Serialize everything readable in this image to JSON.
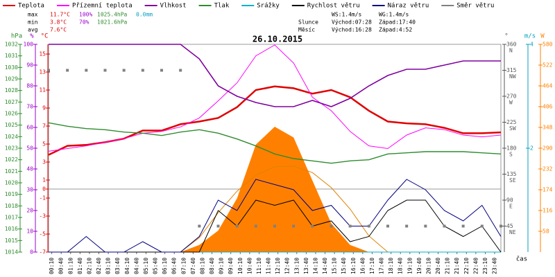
{
  "chart_data": {
    "type": "line",
    "title": "26.10.2015",
    "stats": {
      "max": [
        "max",
        "11.7°C",
        "100%",
        "1025.4hPa",
        "0.0mm"
      ],
      "min": [
        "min",
        "3.8°C",
        "70%",
        "1021.6hPa"
      ],
      "avg": [
        "avg",
        "7.6°C"
      ]
    },
    "info": {
      "wind": [
        "WS:1.4m/s",
        "WG:1.4m/s"
      ],
      "sun": [
        "Slunce",
        "Východ:07:28",
        "Západ:17:40"
      ],
      "moon": [
        "Měsíc",
        "Východ:16:28",
        "Západ:4:52"
      ]
    },
    "x_label": "čas",
    "xlim": [
      0,
      24
    ],
    "x": [
      0,
      1,
      2,
      3,
      4,
      5,
      6,
      7,
      8,
      9,
      10,
      11,
      12,
      13,
      14,
      15,
      16,
      17,
      18,
      19,
      20,
      21,
      22,
      23,
      24
    ],
    "xticks": [
      {
        "value": 0.17,
        "label": "00:10"
      },
      {
        "value": 0.67,
        "label": "00:40"
      },
      {
        "value": 1.17,
        "label": "01:10"
      },
      {
        "value": 1.67,
        "label": "01:40"
      },
      {
        "value": 2.17,
        "label": "02:10"
      },
      {
        "value": 2.67,
        "label": "02:40"
      },
      {
        "value": 3.17,
        "label": "03:10"
      },
      {
        "value": 3.67,
        "label": "03:40"
      },
      {
        "value": 4.17,
        "label": "04:10"
      },
      {
        "value": 4.67,
        "label": "04:40"
      },
      {
        "value": 5.17,
        "label": "05:10"
      },
      {
        "value": 5.67,
        "label": "05:40"
      },
      {
        "value": 6.17,
        "label": "06:10"
      },
      {
        "value": 6.67,
        "label": "06:40"
      },
      {
        "value": 7.17,
        "label": "07:10"
      },
      {
        "value": 7.67,
        "label": "07:40"
      },
      {
        "value": 8.17,
        "label": "08:10"
      },
      {
        "value": 8.67,
        "label": "08:40"
      },
      {
        "value": 9.17,
        "label": "09:10"
      },
      {
        "value": 9.67,
        "label": "09:40"
      },
      {
        "value": 10.17,
        "label": "10:10"
      },
      {
        "value": 10.67,
        "label": "10:40"
      },
      {
        "value": 11.17,
        "label": "11:10"
      },
      {
        "value": 11.67,
        "label": "11:40"
      },
      {
        "value": 12.17,
        "label": "12:10"
      },
      {
        "value": 12.67,
        "label": "12:40"
      },
      {
        "value": 13.17,
        "label": "13:10"
      },
      {
        "value": 13.67,
        "label": "13:40"
      },
      {
        "value": 14.17,
        "label": "14:10"
      },
      {
        "value": 14.67,
        "label": "14:40"
      },
      {
        "value": 15.17,
        "label": "15:10"
      },
      {
        "value": 15.67,
        "label": "15:40"
      },
      {
        "value": 16.17,
        "label": "16:10"
      },
      {
        "value": 16.67,
        "label": "16:40"
      },
      {
        "value": 17.17,
        "label": "17:10"
      },
      {
        "value": 17.67,
        "label": "17:40"
      },
      {
        "value": 18.17,
        "label": "18:10"
      },
      {
        "value": 18.67,
        "label": "18:40"
      },
      {
        "value": 19.17,
        "label": "19:10"
      },
      {
        "value": 19.67,
        "label": "19:40"
      },
      {
        "value": 20.17,
        "label": "20:10"
      },
      {
        "value": 20.67,
        "label": "20:40"
      },
      {
        "value": 21.17,
        "label": "21:10"
      },
      {
        "value": 21.67,
        "label": "21:40"
      },
      {
        "value": 22.17,
        "label": "22:10"
      },
      {
        "value": 22.67,
        "label": "22:40"
      },
      {
        "value": 23.17,
        "label": "23:10"
      },
      {
        "value": 23.67,
        "label": "23:40"
      }
    ],
    "axes": {
      "hpa": {
        "label": "hPa",
        "color": "#2e8b2e",
        "lim": [
          1014,
          1032
        ],
        "ticks": [
          1014,
          1015,
          1016,
          1017,
          1018,
          1019,
          1020,
          1021,
          1022,
          1023,
          1024,
          1025,
          1026,
          1027,
          1028,
          1029,
          1030,
          1031,
          1032
        ]
      },
      "pct": {
        "label": "%",
        "color": "#9900cc",
        "lim": [
          0,
          100
        ],
        "ticks": [
          0,
          10,
          20,
          30,
          40,
          50,
          60,
          70,
          80,
          90,
          100
        ]
      },
      "degc": {
        "label": "°C",
        "color": "#e00000",
        "lim": [
          -7,
          16.08
        ],
        "ticks": [
          -7,
          -5,
          -3,
          -1,
          0,
          1,
          3,
          5,
          7,
          9,
          11,
          13,
          15
        ]
      },
      "dir": {
        "label": "°",
        "color": "#555555",
        "lim": [
          0,
          360
        ],
        "ticks": [
          45,
          90,
          135,
          180,
          225,
          270,
          315,
          360
        ],
        "compass": [
          "NE",
          "E",
          "SE",
          "S",
          "SW",
          "W",
          "NW",
          "N"
        ]
      },
      "ms": {
        "label": "m/s",
        "color": "#00a0c0",
        "lim": [
          0,
          4
        ],
        "ticks": [
          2,
          4
        ]
      },
      "w": {
        "label": "W",
        "color": "#ff8000",
        "lim": [
          0,
          580
        ],
        "ticks": [
          58,
          116,
          174,
          232,
          290,
          348,
          406,
          464,
          522,
          580
        ]
      }
    },
    "series": [
      {
        "style": "area",
        "axis": "w",
        "color": "#ff8000",
        "values": [
          0,
          0,
          0,
          0,
          0,
          0,
          0,
          0,
          20,
          60,
          150,
          300,
          350,
          320,
          200,
          80,
          20,
          0,
          0,
          0,
          0,
          0,
          0,
          0,
          0
        ]
      },
      {
        "style": "line",
        "axis": "w",
        "color": "#e08000",
        "values": [
          null,
          null,
          null,
          null,
          null,
          null,
          null,
          0,
          40,
          110,
          170,
          215,
          238,
          240,
          222,
          180,
          120,
          45,
          0,
          null,
          null,
          null,
          null,
          null,
          null
        ]
      },
      {
        "name": "Teplota",
        "style": "line",
        "axis": "degc",
        "color": "#e00000",
        "width": 2.5,
        "values": [
          3.8,
          4.8,
          4.9,
          5.2,
          5.6,
          6.5,
          6.5,
          7.2,
          7.5,
          7.9,
          9.1,
          11.0,
          11.4,
          11.2,
          10.6,
          11.0,
          10.2,
          8.7,
          7.5,
          7.3,
          7.2,
          6.8,
          6.2,
          6.2,
          6.3
        ]
      },
      {
        "name": "Přízemní teplota",
        "style": "line",
        "axis": "degc",
        "color": "#ff00ff",
        "values": [
          4.2,
          4.5,
          4.8,
          5.2,
          5.6,
          6.2,
          6.4,
          6.9,
          7.9,
          9.8,
          11.8,
          14.8,
          16.0,
          14.0,
          10.2,
          8.7,
          6.4,
          4.8,
          4.5,
          6.0,
          6.8,
          6.6,
          6.0,
          5.8,
          6.0
        ]
      },
      {
        "name": "Vlhkost",
        "style": "line",
        "axis": "pct",
        "color": "#8000a0",
        "width": 1.6,
        "values": [
          100,
          100,
          100,
          100,
          100,
          100,
          100,
          100,
          93,
          80,
          75,
          72,
          70,
          70,
          73,
          70,
          74,
          80,
          85,
          88,
          88,
          90,
          92,
          92,
          92
        ]
      },
      {
        "name": "Tlak",
        "style": "line",
        "axis": "hpa",
        "color": "#2e8b2e",
        "width": 1.4,
        "values": [
          1025.2,
          1024.9,
          1024.7,
          1024.6,
          1024.4,
          1024.3,
          1024.1,
          1024.4,
          1024.6,
          1024.3,
          1023.8,
          1023.2,
          1022.5,
          1022.1,
          1021.9,
          1021.7,
          1021.9,
          1022.0,
          1022.5,
          1022.6,
          1022.7,
          1022.7,
          1022.7,
          1022.6,
          1022.5
        ]
      },
      {
        "name": "Srážky",
        "style": "line",
        "axis": "ms",
        "color": "#00b0d0",
        "values": [
          0,
          0,
          0,
          0,
          0,
          0,
          0,
          0,
          0,
          0,
          0,
          0,
          0,
          0,
          0,
          0,
          0,
          0,
          0,
          0,
          0,
          0,
          0,
          0,
          0
        ]
      },
      {
        "name": "Rychlost větru",
        "style": "line",
        "axis": "ms",
        "color": "#000000",
        "values": [
          0,
          0,
          0,
          0,
          0,
          0,
          0,
          0,
          0,
          0.8,
          0.5,
          1.0,
          0.9,
          1.0,
          0.5,
          0.6,
          0.2,
          0.3,
          0.8,
          1.0,
          1.0,
          0.5,
          0.3,
          0.5,
          0
        ]
      },
      {
        "name": "Náraz větru",
        "style": "line",
        "axis": "ms",
        "color": "#000080",
        "values": [
          0,
          0,
          0.3,
          0,
          0,
          0.2,
          0,
          0,
          0.3,
          1.0,
          0.8,
          1.4,
          1.3,
          1.2,
          0.8,
          0.9,
          0.5,
          0.5,
          1.0,
          1.4,
          1.2,
          0.8,
          0.6,
          0.9,
          0.3
        ]
      },
      {
        "name": "Směr větru",
        "style": "points",
        "axis": "dir",
        "color": "#808080",
        "values": [
          315,
          315,
          315,
          315,
          315,
          315,
          315,
          315,
          45,
          45,
          45,
          45,
          45,
          45,
          45,
          45,
          45,
          45,
          45,
          45,
          45,
          45,
          45,
          45,
          45
        ]
      }
    ]
  }
}
